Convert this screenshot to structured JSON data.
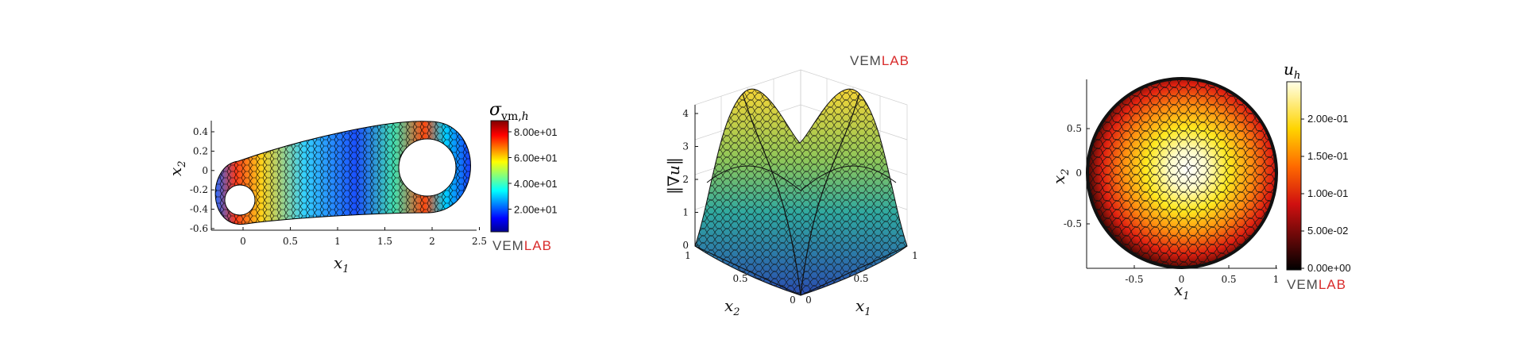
{
  "logo": {
    "part1": "VEM",
    "part2": "LAB",
    "color1": "#4a4a4a",
    "color2": "#d92b2b"
  },
  "chart_data": [
    {
      "type": "heatmap",
      "title": "",
      "xlabel": "x1",
      "ylabel": "x2",
      "xlim": [
        -0.35,
        2.5
      ],
      "ylim": [
        -0.65,
        0.5
      ],
      "x_ticks": [
        "0",
        "0.5",
        "1",
        "1.5",
        "2",
        "2.5"
      ],
      "y_ticks": [
        "0.4",
        "0.2",
        "0",
        "-0.2",
        "-0.4",
        "-0.6"
      ],
      "colorbar": {
        "label": "σ_vm,h",
        "ticks": [
          "8.00e+01",
          "6.00e+01",
          "4.00e+01",
          "2.00e+01"
        ],
        "colormap": "jet"
      },
      "grid": false
    },
    {
      "type": "surface",
      "title": "",
      "xlabel": "x1",
      "ylabel": "x2",
      "zlabel": "‖∇u‖",
      "z_ticks": [
        "4",
        "3",
        "2",
        "1",
        "0"
      ],
      "x_ticks": [
        "0",
        "0.5",
        "1"
      ],
      "y_ticks": [
        "1",
        "0.5",
        "0"
      ],
      "zlim": [
        0,
        4
      ],
      "grid": true
    },
    {
      "type": "heatmap",
      "title": "",
      "xlabel": "x1",
      "ylabel": "x2",
      "xlim": [
        -1,
        1
      ],
      "ylim": [
        -1,
        1
      ],
      "x_ticks": [
        "-0.5",
        "0",
        "0.5",
        "1"
      ],
      "y_ticks": [
        "0.5",
        "0",
        "-0.5"
      ],
      "colorbar": {
        "label": "u_h",
        "ticks": [
          "2.00e-01",
          "1.50e-01",
          "1.00e-01",
          "5.00e-02",
          "0.00e+00"
        ],
        "colormap": "hot"
      },
      "grid": false
    }
  ]
}
